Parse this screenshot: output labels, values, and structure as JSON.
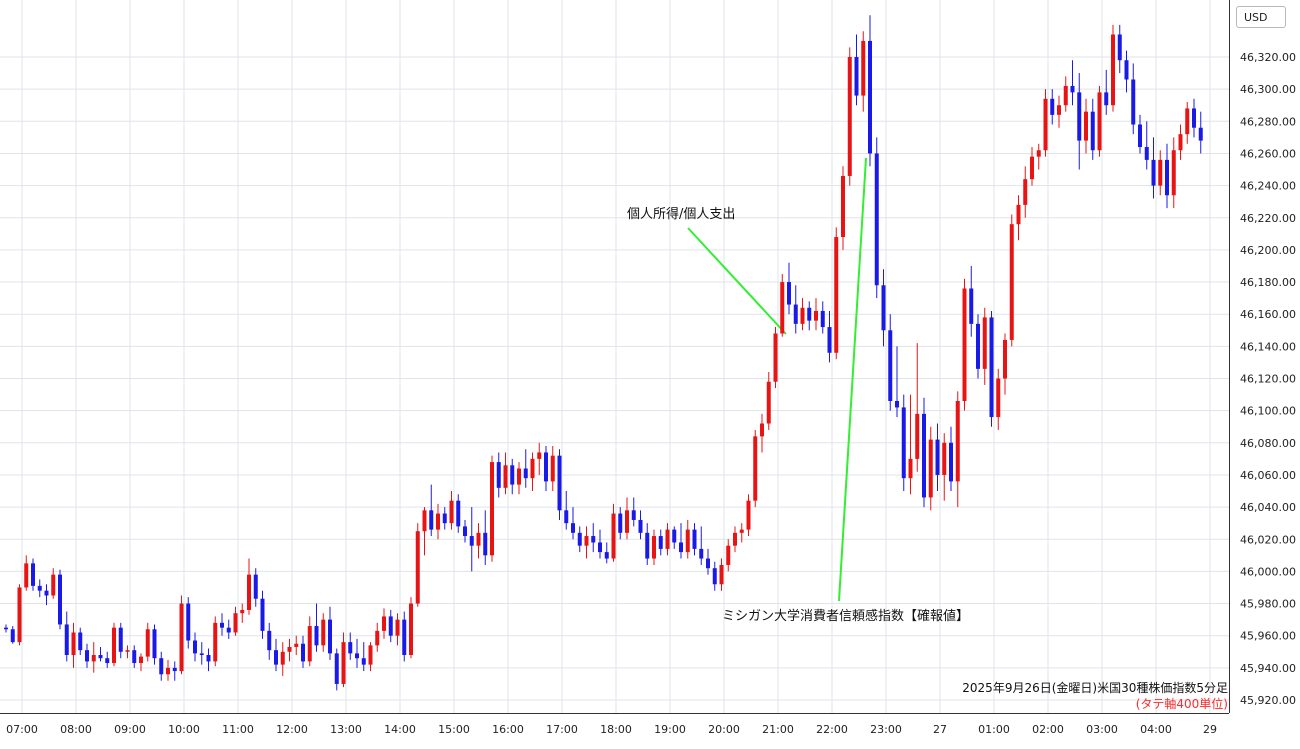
{
  "currency_label": "USD",
  "caption": {
    "line1": "2025年9月26日(金曜日)米国30種株価指数5分足",
    "line2": "(タテ軸400単位)",
    "line2_color": "#ff2a2a"
  },
  "annotations": [
    {
      "text": "個人所得/個人支出",
      "time": "21:35",
      "price": 46150,
      "line_color": "#33ee33"
    },
    {
      "text": "ミシガン大学消費者信頼感指数【確報値】",
      "time": "23:00",
      "price": 46260,
      "line_color": "#33ee33"
    }
  ],
  "colors": {
    "up": "#e81414",
    "down": "#1a1ae8",
    "grid": "#dfe3ea",
    "axis": "#222222"
  },
  "chart_data": {
    "type": "candlestick",
    "title": "2025年9月26日(金曜日)米国30種株価指数5分足",
    "interval_minutes": 5,
    "x_start": "06:55",
    "ylim": [
      45910,
      46350
    ],
    "y_ticks": [
      45920,
      45940,
      45960,
      45980,
      46000,
      46020,
      46040,
      46060,
      46080,
      46100,
      46120,
      46140,
      46160,
      46180,
      46200,
      46220,
      46240,
      46260,
      46280,
      46300,
      46320
    ],
    "y_tick_labels": [
      "45,920.00",
      "45,940.00",
      "45,960.00",
      "45,980.00",
      "46,000.00",
      "46,020.00",
      "46,040.00",
      "46,060.00",
      "46,080.00",
      "46,100.00",
      "46,120.00",
      "46,140.00",
      "46,160.00",
      "46,180.00",
      "46,200.00",
      "46,220.00",
      "46,240.00",
      "46,260.00",
      "46,280.00",
      "46,300.00",
      "46,320.00"
    ],
    "x_tick_labels": [
      "07:00",
      "08:00",
      "09:00",
      "10:00",
      "11:00",
      "12:00",
      "13:00",
      "14:00",
      "15:00",
      "16:00",
      "17:00",
      "18:00",
      "19:00",
      "20:00",
      "21:00",
      "22:00",
      "23:00",
      "27",
      "01:00",
      "02:00",
      "03:00",
      "04:00",
      "29"
    ],
    "grid": true,
    "candles": [
      [
        45965,
        45967,
        45962,
        45964
      ],
      [
        45964,
        45966,
        45955,
        45956
      ],
      [
        45956,
        45992,
        45954,
        45990
      ],
      [
        45990,
        46010,
        45988,
        46005
      ],
      [
        46005,
        46008,
        45988,
        45991
      ],
      [
        45991,
        45995,
        45984,
        45988
      ],
      [
        45988,
        45992,
        45979,
        45985
      ],
      [
        45985,
        46002,
        45983,
        45998
      ],
      [
        45998,
        46001,
        45964,
        45967
      ],
      [
        45967,
        45975,
        45944,
        45948
      ],
      [
        45948,
        45968,
        45940,
        45962
      ],
      [
        45962,
        45965,
        45948,
        45951
      ],
      [
        45951,
        45955,
        45940,
        45944
      ],
      [
        45944,
        45956,
        45937,
        45948
      ],
      [
        45948,
        45953,
        45944,
        45946
      ],
      [
        45946,
        45950,
        45940,
        45943
      ],
      [
        45943,
        45968,
        45941,
        45965
      ],
      [
        45965,
        45968,
        45946,
        45950
      ],
      [
        45950,
        45954,
        45946,
        45951
      ],
      [
        45951,
        45954,
        45940,
        45943
      ],
      [
        45943,
        45949,
        45938,
        45947
      ],
      [
        45947,
        45968,
        45944,
        45964
      ],
      [
        45964,
        45967,
        45942,
        45946
      ],
      [
        45946,
        45950,
        45932,
        45936
      ],
      [
        45936,
        45945,
        45932,
        45940
      ],
      [
        45940,
        45944,
        45932,
        45938
      ],
      [
        45938,
        45985,
        45936,
        45980
      ],
      [
        45980,
        45984,
        45952,
        45957
      ],
      [
        45957,
        45962,
        45944,
        45949
      ],
      [
        45949,
        45956,
        45942,
        45948
      ],
      [
        45948,
        45952,
        45938,
        45944
      ],
      [
        45944,
        45972,
        45941,
        45968
      ],
      [
        45968,
        45974,
        45960,
        45965
      ],
      [
        45965,
        45970,
        45958,
        45962
      ],
      [
        45962,
        45978,
        45960,
        45974
      ],
      [
        45974,
        45980,
        45968,
        45976
      ],
      [
        45976,
        46008,
        45973,
        45998
      ],
      [
        45998,
        46002,
        45978,
        45983
      ],
      [
        45983,
        45988,
        45958,
        45963
      ],
      [
        45963,
        45968,
        45945,
        45951
      ],
      [
        45951,
        45958,
        45938,
        45942
      ],
      [
        45942,
        45956,
        45935,
        45950
      ],
      [
        45950,
        45958,
        45944,
        45953
      ],
      [
        45953,
        45960,
        45948,
        45955
      ],
      [
        45955,
        45960,
        45940,
        45944
      ],
      [
        45944,
        45972,
        45941,
        45966
      ],
      [
        45966,
        45980,
        45950,
        45954
      ],
      [
        45954,
        45974,
        45950,
        45970
      ],
      [
        45970,
        45978,
        45945,
        45949
      ],
      [
        45949,
        45952,
        45926,
        45930
      ],
      [
        45930,
        45962,
        45928,
        45956
      ],
      [
        45956,
        45962,
        45945,
        45949
      ],
      [
        45949,
        45958,
        45940,
        45946
      ],
      [
        45946,
        45956,
        45938,
        45942
      ],
      [
        45942,
        45956,
        45938,
        45954
      ],
      [
        45954,
        45968,
        45950,
        45963
      ],
      [
        45963,
        45977,
        45958,
        45972
      ],
      [
        45972,
        45976,
        45956,
        45960
      ],
      [
        45960,
        45974,
        45954,
        45970
      ],
      [
        45970,
        45975,
        45944,
        45948
      ],
      [
        45948,
        45984,
        45946,
        45980
      ],
      [
        45980,
        46030,
        45978,
        46025
      ],
      [
        46025,
        46040,
        46010,
        46038
      ],
      [
        46038,
        46054,
        46022,
        46026
      ],
      [
        46026,
        46042,
        46020,
        46036
      ],
      [
        46036,
        46040,
        46026,
        46030
      ],
      [
        46030,
        46050,
        46026,
        46044
      ],
      [
        46044,
        46048,
        46024,
        46028
      ],
      [
        46028,
        46032,
        46018,
        46022
      ],
      [
        46022,
        46040,
        46000,
        46016
      ],
      [
        46016,
        46030,
        46008,
        46024
      ],
      [
        46024,
        46038,
        46004,
        46010
      ],
      [
        46010,
        46072,
        46006,
        46068
      ],
      [
        46068,
        46074,
        46046,
        46052
      ],
      [
        46052,
        46074,
        46048,
        46066
      ],
      [
        46066,
        46070,
        46048,
        46054
      ],
      [
        46054,
        46068,
        46048,
        46064
      ],
      [
        46064,
        46076,
        46052,
        46058
      ],
      [
        46058,
        46074,
        46050,
        46070
      ],
      [
        46070,
        46080,
        46060,
        46074
      ],
      [
        46074,
        46078,
        46050,
        46056
      ],
      [
        46056,
        46078,
        46050,
        46072
      ],
      [
        46072,
        46076,
        46032,
        46038
      ],
      [
        46038,
        46050,
        46026,
        46030
      ],
      [
        46030,
        46040,
        46020,
        46024
      ],
      [
        46024,
        46028,
        46012,
        46016
      ],
      [
        46016,
        46028,
        46008,
        46022
      ],
      [
        46022,
        46030,
        46012,
        46018
      ],
      [
        46018,
        46026,
        46008,
        46012
      ],
      [
        46012,
        46018,
        46005,
        46008
      ],
      [
        46008,
        46042,
        46006,
        46036
      ],
      [
        46036,
        46040,
        46020,
        46024
      ],
      [
        46024,
        46046,
        46020,
        46038
      ],
      [
        46038,
        46046,
        46028,
        46032
      ],
      [
        46032,
        46038,
        46020,
        46024
      ],
      [
        46024,
        46030,
        46004,
        46008
      ],
      [
        46008,
        46026,
        46004,
        46022
      ],
      [
        46022,
        46026,
        46010,
        46014
      ],
      [
        46014,
        46030,
        46010,
        46026
      ],
      [
        46026,
        46028,
        46014,
        46018
      ],
      [
        46018,
        46030,
        46008,
        46012
      ],
      [
        46012,
        46032,
        46008,
        46026
      ],
      [
        46026,
        46030,
        46010,
        46014
      ],
      [
        46014,
        46028,
        46004,
        46008
      ],
      [
        46008,
        46014,
        45998,
        46002
      ],
      [
        46002,
        46006,
        45988,
        45992
      ],
      [
        45992,
        46008,
        45988,
        46004
      ],
      [
        46004,
        46020,
        46000,
        46016
      ],
      [
        46016,
        46028,
        46012,
        46024
      ],
      [
        46024,
        46030,
        46018,
        46026
      ],
      [
        46026,
        46048,
        46022,
        46044
      ],
      [
        46044,
        46088,
        46040,
        46084
      ],
      [
        46084,
        46098,
        46074,
        46092
      ],
      [
        46092,
        46124,
        46088,
        46118
      ],
      [
        46118,
        46152,
        46114,
        46148
      ],
      [
        46148,
        46185,
        46146,
        46180
      ],
      [
        46180,
        46192,
        46160,
        46166
      ],
      [
        46166,
        46178,
        46148,
        46154
      ],
      [
        46154,
        46170,
        46150,
        46164
      ],
      [
        46164,
        46168,
        46150,
        46156
      ],
      [
        46156,
        46170,
        46150,
        46162
      ],
      [
        46162,
        46168,
        46148,
        46152
      ],
      [
        46152,
        46162,
        46130,
        46136
      ],
      [
        46136,
        46214,
        46132,
        46208
      ],
      [
        46208,
        46252,
        46200,
        46246
      ],
      [
        46246,
        46326,
        46240,
        46320
      ],
      [
        46320,
        46334,
        46290,
        46296
      ],
      [
        46296,
        46336,
        46286,
        46330
      ],
      [
        46330,
        46346,
        46252,
        46260
      ],
      [
        46260,
        46270,
        46170,
        46178
      ],
      [
        46178,
        46188,
        46140,
        46150
      ],
      [
        46150,
        46160,
        46100,
        46106
      ],
      [
        46106,
        46140,
        46096,
        46102
      ],
      [
        46102,
        46110,
        46050,
        46058
      ],
      [
        46058,
        46110,
        46048,
        46070
      ],
      [
        46070,
        46142,
        46062,
        46098
      ],
      [
        46098,
        46108,
        46040,
        46046
      ],
      [
        46046,
        46090,
        46038,
        46082
      ],
      [
        46082,
        46092,
        46050,
        46060
      ],
      [
        46060,
        46086,
        46044,
        46080
      ],
      [
        46080,
        46090,
        46050,
        46056
      ],
      [
        46056,
        46112,
        46040,
        46106
      ],
      [
        46106,
        46182,
        46100,
        46176
      ],
      [
        46176,
        46190,
        46146,
        46154
      ],
      [
        46154,
        46160,
        46120,
        46126
      ],
      [
        46126,
        46164,
        46116,
        46158
      ],
      [
        46158,
        46162,
        46090,
        46096
      ],
      [
        46096,
        46126,
        46088,
        46120
      ],
      [
        46120,
        46148,
        46110,
        46144
      ],
      [
        46144,
        46222,
        46140,
        46216
      ],
      [
        46216,
        46234,
        46206,
        46228
      ],
      [
        46228,
        46252,
        46220,
        46244
      ],
      [
        46244,
        46264,
        46240,
        46258
      ],
      [
        46258,
        46266,
        46250,
        46262
      ],
      [
        46262,
        46300,
        46258,
        46294
      ],
      [
        46294,
        46300,
        46278,
        46284
      ],
      [
        46284,
        46296,
        46276,
        46290
      ],
      [
        46290,
        46308,
        46286,
        46302
      ],
      [
        46302,
        46318,
        46290,
        46298
      ],
      [
        46298,
        46310,
        46250,
        46268
      ],
      [
        46268,
        46294,
        46260,
        46286
      ],
      [
        46286,
        46294,
        46256,
        46262
      ],
      [
        46262,
        46302,
        46258,
        46298
      ],
      [
        46298,
        46312,
        46284,
        46290
      ],
      [
        46290,
        46340,
        46286,
        46334
      ],
      [
        46334,
        46340,
        46310,
        46318
      ],
      [
        46318,
        46324,
        46298,
        46306
      ],
      [
        46306,
        46316,
        46272,
        46278
      ],
      [
        46278,
        46284,
        46260,
        46264
      ],
      [
        46264,
        46280,
        46250,
        46256
      ],
      [
        46256,
        46270,
        46232,
        46240
      ],
      [
        46240,
        46262,
        46234,
        46256
      ],
      [
        46256,
        46266,
        46226,
        46234
      ],
      [
        46234,
        46270,
        46226,
        46262
      ],
      [
        46262,
        46278,
        46256,
        46272
      ],
      [
        46272,
        46292,
        46266,
        46288
      ],
      [
        46288,
        46294,
        46270,
        46276
      ],
      [
        46276,
        46286,
        46260,
        46268
      ]
    ]
  }
}
